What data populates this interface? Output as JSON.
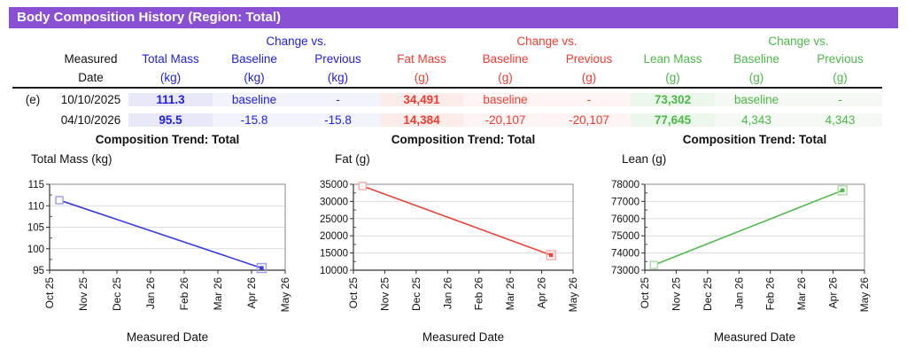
{
  "title": "Body Composition History (Region: Total)",
  "colors": {
    "purple_header": "#8A50D3",
    "blue": "#2121DE",
    "red": "#F03B30",
    "green": "#4CB848",
    "tint_blue": "#E8E8F8",
    "tint_blue_light": "#F3F3FB",
    "tint_red": "#FBEBE9",
    "tint_red_light": "#FDF4F3",
    "tint_green": "#EBF7EA",
    "tint_green_light": "#F4FAF3"
  },
  "table": {
    "change_vs": "Change vs.",
    "headers": {
      "measured": "Measured",
      "date": "Date",
      "total_mass": "Total Mass",
      "fat_mass": "Fat Mass",
      "lean_mass": "Lean Mass",
      "baseline": "Baseline",
      "previous": "Previous",
      "kg": "(kg)",
      "g": "(g)"
    },
    "rows": [
      {
        "flag": "(e)",
        "date": "10/10/2025",
        "total_mass": "111.3",
        "tm_vs_baseline": "baseline",
        "tm_vs_previous": "-",
        "fat_mass": "34,491",
        "fm_vs_baseline": "baseline",
        "fm_vs_previous": "-",
        "lean_mass": "73,302",
        "lm_vs_baseline": "baseline",
        "lm_vs_previous": "-"
      },
      {
        "flag": "",
        "date": "04/10/2026",
        "total_mass": "95.5",
        "tm_vs_baseline": "-15.8",
        "tm_vs_previous": "-15.8",
        "fat_mass": "14,384",
        "fm_vs_baseline": "-20,107",
        "fm_vs_previous": "-20,107",
        "lean_mass": "77,645",
        "lm_vs_baseline": "4,343",
        "lm_vs_previous": "4,343"
      }
    ]
  },
  "chart_data": [
    {
      "type": "line",
      "title": "Composition Trend: Total",
      "ylabel": "Total Mass (kg)",
      "xlabel": "Measured Date",
      "x_tick_labels": [
        "Oct 25",
        "Nov 25",
        "Dec 25",
        "Jan 26",
        "Feb 26",
        "Mar 26",
        "Apr 26",
        "May 26"
      ],
      "ylim": [
        95,
        115
      ],
      "ytick_step": 5,
      "grid": true,
      "legend_position": "none",
      "series": [
        {
          "name": "Total Mass (kg)",
          "color": "#3B3BE2",
          "light_color": "#9B9BEB",
          "points": [
            {
              "date": "10/10/2025",
              "month_offset": 0.29,
              "value": 111.3
            },
            {
              "date": "04/10/2026",
              "month_offset": 6.3,
              "value": 95.5
            }
          ]
        }
      ]
    },
    {
      "type": "line",
      "title": "Composition Trend: Total",
      "ylabel": "Fat (g)",
      "xlabel": "Measured Date",
      "x_tick_labels": [
        "Oct 25",
        "Nov 25",
        "Dec 25",
        "Jan 26",
        "Feb 26",
        "Mar 26",
        "Apr 26",
        "May 26"
      ],
      "ylim": [
        10000,
        35000
      ],
      "ytick_step": 5000,
      "grid": true,
      "legend_position": "none",
      "series": [
        {
          "name": "Fat (g)",
          "color": "#ED4338",
          "light_color": "#F5A9A3",
          "points": [
            {
              "date": "10/10/2025",
              "month_offset": 0.29,
              "value": 34491
            },
            {
              "date": "04/10/2026",
              "month_offset": 6.3,
              "value": 14384
            }
          ]
        }
      ]
    },
    {
      "type": "line",
      "title": "Composition Trend: Total",
      "ylabel": "Lean (g)",
      "xlabel": "Measured Date",
      "x_tick_labels": [
        "Oct 25",
        "Nov 25",
        "Dec 25",
        "Jan 26",
        "Feb 26",
        "Mar 26",
        "Apr 26",
        "May 26"
      ],
      "ylim": [
        73000,
        78000
      ],
      "ytick_step": 1000,
      "grid": true,
      "legend_position": "none",
      "series": [
        {
          "name": "Lean (g)",
          "color": "#52BB4F",
          "light_color": "#A9DBA6",
          "points": [
            {
              "date": "10/10/2025",
              "month_offset": 0.29,
              "value": 73302
            },
            {
              "date": "04/10/2026",
              "month_offset": 6.3,
              "value": 77645
            }
          ]
        }
      ]
    }
  ]
}
